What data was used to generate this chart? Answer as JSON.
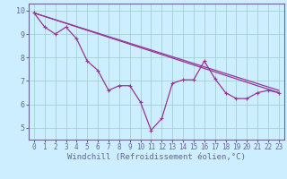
{
  "xlabel": "Windchill (Refroidissement éolien,°C)",
  "bg_color": "#cceeff",
  "line_color": "#993399",
  "grid_color": "#99cccc",
  "spine_color": "#666699",
  "xlim": [
    -0.5,
    23.5
  ],
  "ylim": [
    4.5,
    10.3
  ],
  "yticks": [
    5,
    6,
    7,
    8,
    9,
    10
  ],
  "xticks": [
    0,
    1,
    2,
    3,
    4,
    5,
    6,
    7,
    8,
    9,
    10,
    11,
    12,
    13,
    14,
    15,
    16,
    17,
    18,
    19,
    20,
    21,
    22,
    23
  ],
  "series": {
    "line1_x": [
      0,
      1,
      2,
      3,
      4,
      5,
      6,
      7,
      8,
      9,
      10,
      11,
      12,
      13,
      14,
      15,
      16,
      17,
      18,
      19,
      20,
      21,
      22,
      23
    ],
    "line1_y": [
      9.9,
      9.3,
      9.0,
      9.3,
      8.8,
      7.85,
      7.45,
      6.6,
      6.8,
      6.8,
      6.1,
      4.9,
      5.4,
      6.9,
      7.05,
      7.05,
      7.85,
      7.1,
      6.5,
      6.25,
      6.25,
      6.5,
      6.6,
      6.5
    ],
    "line2_x": [
      0,
      23
    ],
    "line2_y": [
      9.9,
      6.5
    ],
    "line3_x": [
      0,
      23
    ],
    "line3_y": [
      9.9,
      6.6
    ]
  },
  "marker_size": 2.5,
  "line_width": 0.9,
  "tick_fontsize": 5.5,
  "xlabel_fontsize": 6.5
}
